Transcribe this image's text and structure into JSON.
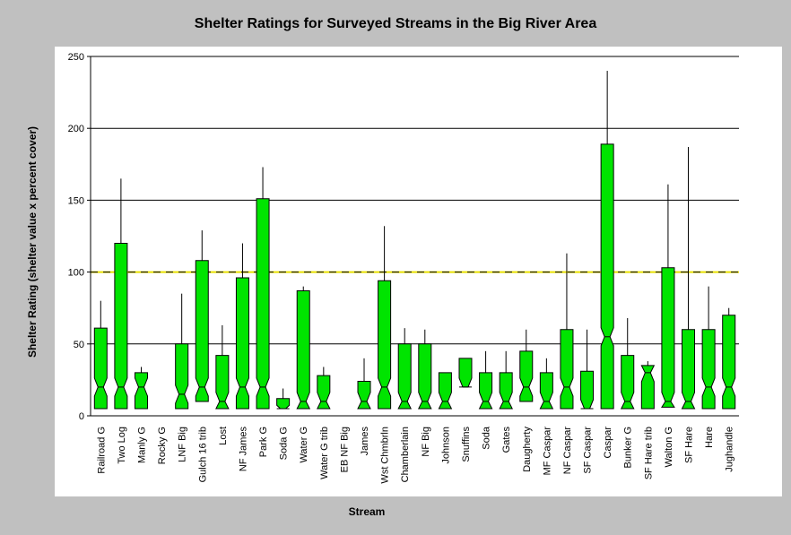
{
  "chart_data": {
    "type": "box",
    "title": "Shelter Ratings for Surveyed Streams in the Big River Area",
    "xlabel": "Stream",
    "ylabel": "Shelter Rating (shelter value x percent cover)",
    "ylim": [
      0,
      250
    ],
    "yticks": [
      0,
      50,
      100,
      150,
      200,
      250
    ],
    "grid": true,
    "reference_line": {
      "value": 100,
      "style": "dashed"
    },
    "box_color": "#00e400",
    "categories": [
      "Railroad G",
      "Two Log",
      "Manly G",
      "Rocky G",
      "LNF Big",
      "Gulch 16 trib",
      "Lost",
      "NF James",
      "Park G",
      "Soda G",
      "Water G",
      "Water G trib",
      "EB NF Big",
      "James",
      "Wst Chmbrln",
      "Chamberlain",
      "NF Big",
      "Johnson",
      "Snuffins",
      "Soda",
      "Gates",
      "Daugherty",
      "MF Caspar",
      "NF Caspar",
      "SF Caspar",
      "Caspar",
      "Bunker G",
      "SF Hare trib",
      "Walton G",
      "SF Hare",
      "Hare",
      "Jughandle"
    ],
    "boxes": [
      {
        "min": 5,
        "q1": 5,
        "median": 20,
        "q3": 61,
        "max": 80
      },
      {
        "min": 5,
        "q1": 5,
        "median": 20,
        "q3": 120,
        "max": 165
      },
      {
        "min": 5,
        "q1": 5,
        "median": 20,
        "q3": 30,
        "max": 34
      },
      null,
      {
        "min": 5,
        "q1": 5,
        "median": 15,
        "q3": 50,
        "max": 85
      },
      {
        "min": 10,
        "q1": 10,
        "median": 20,
        "q3": 108,
        "max": 129
      },
      {
        "min": 5,
        "q1": 5,
        "median": 10,
        "q3": 42,
        "max": 63
      },
      {
        "min": 5,
        "q1": 5,
        "median": 20,
        "q3": 96,
        "max": 120
      },
      {
        "min": 5,
        "q1": 5,
        "median": 20,
        "q3": 151,
        "max": 173
      },
      {
        "min": 5,
        "q1": 5,
        "median": 5,
        "q3": 12,
        "max": 19
      },
      {
        "min": 5,
        "q1": 5,
        "median": 10,
        "q3": 87,
        "max": 90
      },
      {
        "min": 5,
        "q1": 5,
        "median": 10,
        "q3": 28,
        "max": 34
      },
      null,
      {
        "min": 5,
        "q1": 5,
        "median": 10,
        "q3": 24,
        "max": 40
      },
      {
        "min": 5,
        "q1": 5,
        "median": 20,
        "q3": 94,
        "max": 132
      },
      {
        "min": 5,
        "q1": 5,
        "median": 10,
        "q3": 50,
        "max": 61
      },
      {
        "min": 5,
        "q1": 5,
        "median": 10,
        "q3": 50,
        "max": 60
      },
      {
        "min": 5,
        "q1": 5,
        "median": 10,
        "q3": 30,
        "max": 30
      },
      {
        "min": 20,
        "q1": 20,
        "median": 20,
        "q3": 40,
        "max": 40
      },
      {
        "min": 5,
        "q1": 5,
        "median": 10,
        "q3": 30,
        "max": 45
      },
      {
        "min": 5,
        "q1": 5,
        "median": 10,
        "q3": 30,
        "max": 45
      },
      {
        "min": 5,
        "q1": 10,
        "median": 20,
        "q3": 45,
        "max": 60
      },
      {
        "min": 5,
        "q1": 5,
        "median": 10,
        "q3": 30,
        "max": 40
      },
      {
        "min": 5,
        "q1": 5,
        "median": 20,
        "q3": 60,
        "max": 113
      },
      {
        "min": 5,
        "q1": 5,
        "median": 5,
        "q3": 31,
        "max": 60
      },
      {
        "min": 5,
        "q1": 5,
        "median": 55,
        "q3": 189,
        "max": 240
      },
      {
        "min": 5,
        "q1": 5,
        "median": 10,
        "q3": 42,
        "max": 68
      },
      {
        "min": 5,
        "q1": 5,
        "median": 30,
        "q3": 35,
        "max": 38
      },
      {
        "min": 6,
        "q1": 6,
        "median": 10,
        "q3": 103,
        "max": 161
      },
      {
        "min": 5,
        "q1": 5,
        "median": 10,
        "q3": 60,
        "max": 187
      },
      {
        "min": 5,
        "q1": 5,
        "median": 20,
        "q3": 60,
        "max": 90
      },
      {
        "min": 5,
        "q1": 5,
        "median": 20,
        "q3": 70,
        "max": 75
      }
    ]
  }
}
